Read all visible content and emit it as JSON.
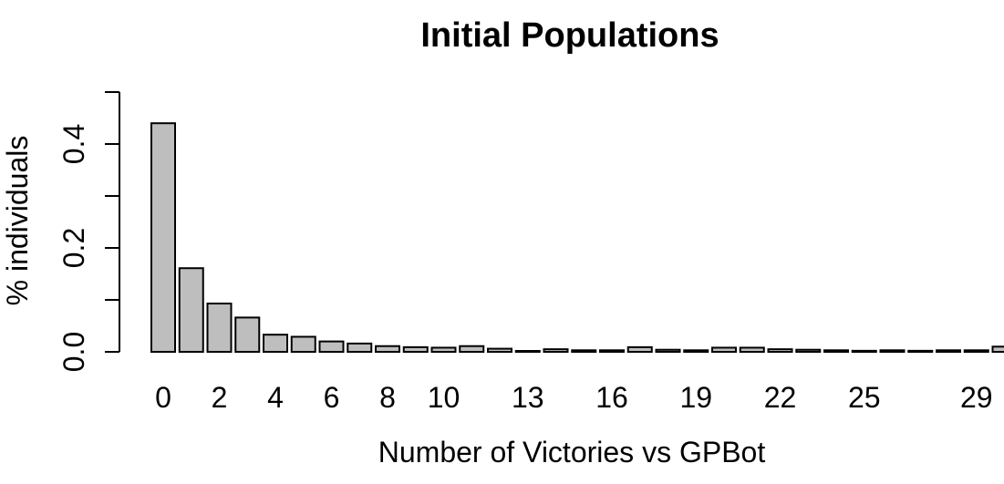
{
  "chart_data": {
    "type": "bar",
    "title": "Initial Populations",
    "xlabel": "Number of Victories vs GPBot",
    "ylabel": "% individuals",
    "bar_color": "#bebebe",
    "border_color": "#000000",
    "categories": [
      "0",
      "1",
      "2",
      "3",
      "4",
      "5",
      "6",
      "7",
      "8",
      "9",
      "10",
      "11",
      "12",
      "13",
      "14",
      "15",
      "16",
      "17",
      "18",
      "19",
      "20",
      "21",
      "22",
      "23",
      "24",
      "25",
      "26",
      "27",
      "28",
      "29",
      "30"
    ],
    "visible_x_tick_labels": [
      "0",
      "2",
      "4",
      "6",
      "8",
      "10",
      "13",
      "16",
      "19",
      "22",
      "25",
      "29"
    ],
    "values": [
      0.44,
      0.161,
      0.093,
      0.066,
      0.033,
      0.029,
      0.02,
      0.016,
      0.011,
      0.009,
      0.008,
      0.011,
      0.006,
      0.001,
      0.005,
      0.003,
      0.003,
      0.009,
      0.004,
      0.003,
      0.008,
      0.008,
      0.005,
      0.004,
      0.003,
      0.002,
      0.003,
      0.002,
      0.003,
      0.003,
      0.01
    ],
    "ylim": [
      0,
      0.5
    ],
    "y_ticks": [
      0.0,
      0.1,
      0.2,
      0.3,
      0.4,
      0.5
    ],
    "y_tick_labels": [
      "0.0",
      "0.2",
      "0.4"
    ],
    "grid": false,
    "legend": "none"
  }
}
